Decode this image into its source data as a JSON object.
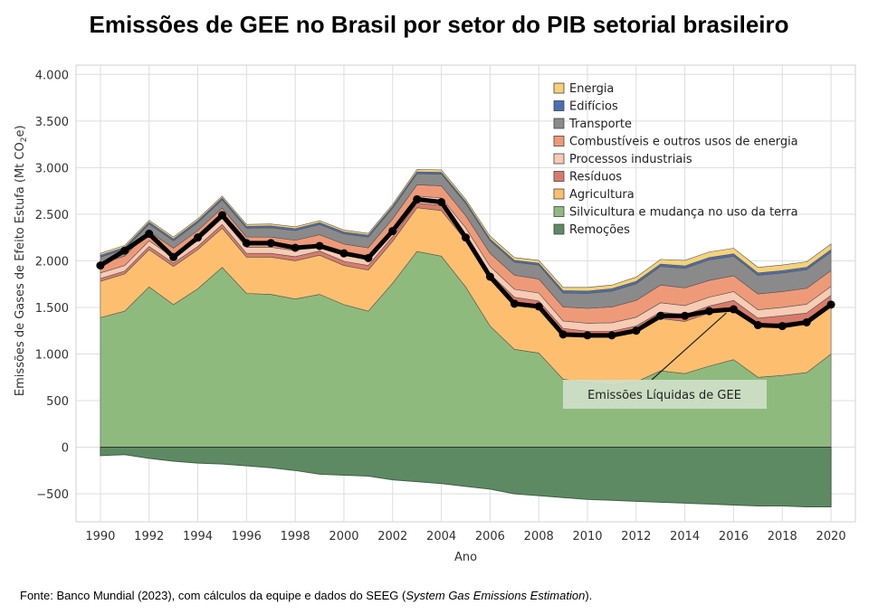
{
  "chart_data": {
    "type": "area",
    "title": "Emissões de GEE no Brasil por setor do PIB setorial brasileiro",
    "xlabel": "Ano",
    "ylabel": "Emissões de Gases de Efeito Estufa (Mt CO₂e)",
    "ylabel_main": "Emissões de Gases de Efeito Estufa (Mt CO",
    "ylabel_sub": "2",
    "ylabel_end": "e)",
    "xlim": [
      1989,
      2021
    ],
    "ylim": [
      -800,
      4100
    ],
    "grid": true,
    "legend_position": "top-right",
    "x": [
      1990,
      1991,
      1992,
      1993,
      1994,
      1995,
      1996,
      1997,
      1998,
      1999,
      2000,
      2001,
      2002,
      2003,
      2004,
      2005,
      2006,
      2007,
      2008,
      2009,
      2010,
      2011,
      2012,
      2013,
      2014,
      2015,
      2016,
      2017,
      2018,
      2019,
      2020
    ],
    "x_ticks": [
      "1990",
      "1992",
      "1994",
      "1996",
      "1998",
      "2000",
      "2002",
      "2004",
      "2006",
      "2008",
      "2010",
      "2012",
      "2014",
      "2016",
      "2018",
      "2020"
    ],
    "y_ticks": [
      {
        "value": 4000,
        "label": "4.000"
      },
      {
        "value": 3500,
        "label": "3.500"
      },
      {
        "value": 3000,
        "label": "3.000"
      },
      {
        "value": 2500,
        "label": "2.500"
      },
      {
        "value": 2000,
        "label": "2.000"
      },
      {
        "value": 1500,
        "label": "1.500"
      },
      {
        "value": 1000,
        "label": "1.000"
      },
      {
        "value": 500,
        "label": "500"
      },
      {
        "value": 0,
        "label": "0"
      },
      {
        "value": -500,
        "label": "−500"
      }
    ],
    "series": [
      {
        "name": "Silvicultura e mudança no uso da terra",
        "color": "#8fba7e",
        "values": [
          1390,
          1460,
          1720,
          1530,
          1700,
          1930,
          1650,
          1640,
          1590,
          1640,
          1530,
          1460,
          1760,
          2100,
          2050,
          1720,
          1300,
          1050,
          1010,
          730,
          690,
          670,
          700,
          820,
          790,
          870,
          940,
          750,
          770,
          800,
          1000
        ]
      },
      {
        "name": "Agricultura",
        "color": "#fdbf6f",
        "values": [
          390,
          400,
          400,
          410,
          420,
          420,
          390,
          400,
          410,
          420,
          420,
          440,
          450,
          470,
          490,
          500,
          500,
          500,
          500,
          480,
          490,
          510,
          530,
          560,
          560,
          570,
          560,
          560,
          560,
          560,
          550
        ]
      },
      {
        "name": "Resíduos",
        "color": "#d97b6c",
        "values": [
          30,
          30,
          35,
          35,
          35,
          40,
          40,
          40,
          45,
          45,
          45,
          50,
          50,
          50,
          55,
          55,
          60,
          60,
          60,
          65,
          65,
          65,
          70,
          70,
          70,
          75,
          75,
          75,
          80,
          80,
          80
        ]
      },
      {
        "name": "Processos industriais",
        "color": "#f7cbb4",
        "values": [
          60,
          60,
          60,
          60,
          60,
          65,
          65,
          65,
          65,
          65,
          65,
          70,
          70,
          75,
          80,
          80,
          80,
          85,
          85,
          80,
          85,
          90,
          95,
          100,
          100,
          95,
          95,
          90,
          90,
          95,
          95
        ]
      },
      {
        "name": "Combustíveis e outros usos de energia",
        "color": "#ee9a78",
        "values": [
          100,
          100,
          100,
          100,
          110,
          110,
          110,
          110,
          110,
          110,
          120,
          120,
          120,
          120,
          130,
          130,
          140,
          150,
          150,
          150,
          160,
          170,
          180,
          190,
          190,
          180,
          170,
          170,
          170,
          170,
          170
        ]
      },
      {
        "name": "Transporte",
        "color": "#8a8a8a",
        "values": [
          70,
          75,
          80,
          80,
          85,
          90,
          95,
          100,
          105,
          110,
          110,
          115,
          115,
          120,
          125,
          130,
          135,
          140,
          150,
          150,
          160,
          170,
          180,
          200,
          210,
          220,
          210,
          200,
          200,
          200,
          200
        ]
      },
      {
        "name": "Edifícios",
        "color": "#4a6fb5",
        "values": [
          20,
          20,
          20,
          20,
          20,
          20,
          20,
          20,
          20,
          20,
          20,
          20,
          20,
          20,
          20,
          20,
          20,
          20,
          20,
          25,
          25,
          25,
          25,
          25,
          25,
          25,
          25,
          25,
          25,
          25,
          25
        ]
      },
      {
        "name": "Energia",
        "color": "#f3d27a",
        "values": [
          20,
          20,
          20,
          20,
          20,
          20,
          20,
          20,
          20,
          20,
          20,
          20,
          20,
          25,
          25,
          25,
          30,
          30,
          30,
          35,
          40,
          40,
          45,
          50,
          60,
          60,
          60,
          60,
          60,
          60,
          60
        ]
      }
    ],
    "removals": {
      "name": "Remoções",
      "color": "#5e8a63",
      "values": [
        -90,
        -80,
        -120,
        -150,
        -170,
        -180,
        -200,
        -220,
        -250,
        -290,
        -300,
        -310,
        -350,
        -370,
        -390,
        -420,
        -450,
        -500,
        -520,
        -540,
        -560,
        -570,
        -580,
        -590,
        -600,
        -610,
        -620,
        -630,
        -630,
        -640,
        -640
      ]
    },
    "net": {
      "name": "Emissões Líquidas de GEE",
      "values": [
        1950,
        2110,
        2290,
        2040,
        2250,
        2490,
        2190,
        2190,
        2140,
        2160,
        2080,
        2030,
        2320,
        2660,
        2630,
        2250,
        1830,
        1540,
        1510,
        1210,
        1200,
        1200,
        1250,
        1410,
        1410,
        1460,
        1480,
        1310,
        1300,
        1340,
        1530
      ]
    },
    "legend": [
      {
        "name": "Energia",
        "color": "#f3d27a"
      },
      {
        "name": "Edifícios",
        "color": "#4a6fb5"
      },
      {
        "name": "Transporte",
        "color": "#8a8a8a"
      },
      {
        "name": "Combustíveis e outros usos de energia",
        "color": "#ee9a78"
      },
      {
        "name": "Processos industriais",
        "color": "#f7cbb4"
      },
      {
        "name": "Resíduos",
        "color": "#d97b6c"
      },
      {
        "name": "Agricultura",
        "color": "#fdbf6f"
      },
      {
        "name": "Silvicultura e mudança no uso da terra",
        "color": "#8fba7e"
      },
      {
        "name": "Remoções",
        "color": "#5e8a63"
      }
    ],
    "annotation": {
      "text": "Emissões Líquidas de GEE",
      "points_to_x": 2016
    }
  },
  "source": "Fonte: Banco Mundial (2023), com cálculos da equipe e dados do SEEG (",
  "source_italic": "System Gas Emissions Estimation",
  "source_end": ")."
}
